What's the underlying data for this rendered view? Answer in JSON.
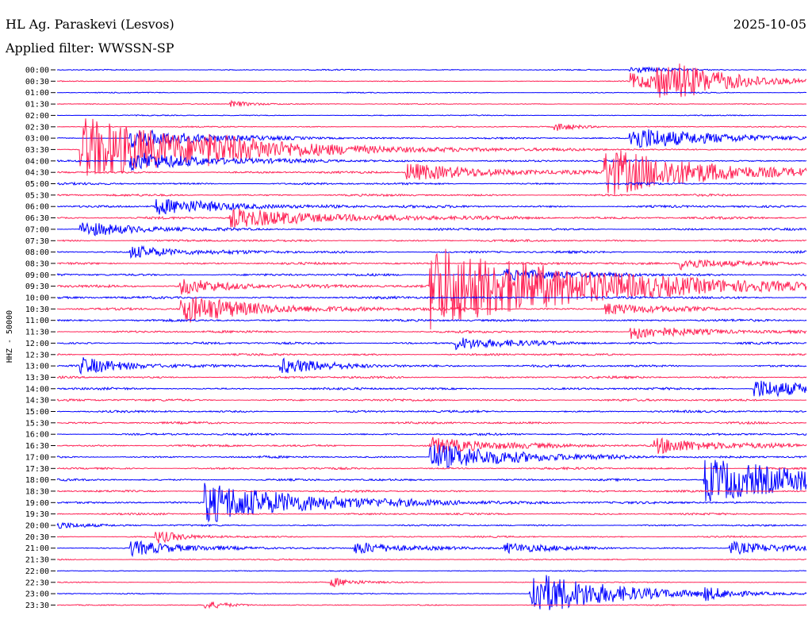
{
  "header": {
    "station": "HL Ag. Paraskevi (Lesvos)",
    "date": "2025-10-05",
    "filter": "Applied filter: WWSSN-SP"
  },
  "chart_data": {
    "type": "helicorder",
    "title": "HL Ag. Paraskevi (Lesvos)",
    "ylabel": "HHZ - 50000",
    "colors": {
      "odd_rows": "#0000ff",
      "even_rows": "#ff2255"
    },
    "grid": false,
    "legend": "none",
    "rows": [
      "00:00",
      "00:30",
      "01:00",
      "01:30",
      "02:00",
      "02:30",
      "03:00",
      "03:30",
      "04:00",
      "04:30",
      "05:00",
      "05:30",
      "06:00",
      "06:30",
      "07:00",
      "07:30",
      "08:00",
      "08:30",
      "09:00",
      "09:30",
      "10:00",
      "10:30",
      "11:00",
      "11:30",
      "12:00",
      "12:30",
      "13:00",
      "13:30",
      "14:00",
      "14:30",
      "15:00",
      "15:30",
      "16:00",
      "16:30",
      "17:00",
      "17:30",
      "18:00",
      "18:30",
      "19:00",
      "19:30",
      "20:00",
      "20:30",
      "21:00",
      "21:30",
      "22:00",
      "22:30",
      "23:00",
      "23:30"
    ],
    "noise": [
      0.8,
      0.6,
      0.7,
      0.6,
      0.7,
      0.8,
      1.0,
      1.0,
      1.3,
      1.5,
      1.5,
      1.5,
      1.6,
      1.6,
      1.5,
      1.5,
      1.6,
      1.6,
      1.7,
      1.7,
      1.7,
      1.6,
      1.6,
      1.6,
      1.6,
      1.5,
      1.6,
      1.6,
      1.6,
      1.6,
      1.5,
      1.5,
      1.5,
      1.6,
      1.5,
      1.5,
      1.5,
      1.4,
      1.3,
      1.3,
      1.2,
      1.1,
      1.0,
      0.9,
      0.7,
      0.7,
      0.7,
      0.7
    ],
    "events": [
      {
        "row": 0,
        "minute": 23,
        "amp": 4,
        "dur": 1.5
      },
      {
        "row": 1,
        "minute": 23,
        "amp": 10,
        "dur": 2.5
      },
      {
        "row": 1,
        "minute": 25,
        "amp": 7,
        "dur": 2
      },
      {
        "row": 1,
        "minute": 24,
        "amp": 16,
        "dur": 2.5
      },
      {
        "row": 3,
        "minute": 7,
        "amp": 4,
        "dur": 1
      },
      {
        "row": 5,
        "minute": 20,
        "amp": 5,
        "dur": 1
      },
      {
        "row": 6,
        "minute": 3,
        "amp": 12,
        "dur": 3
      },
      {
        "row": 6,
        "minute": 23,
        "amp": 16,
        "dur": 3
      },
      {
        "row": 7,
        "minute": 6,
        "amp": 6,
        "dur": 2
      },
      {
        "row": 7,
        "minute": 1,
        "amp": 42,
        "dur": 5
      },
      {
        "row": 8,
        "minute": 3,
        "amp": 12,
        "dur": 3
      },
      {
        "row": 9,
        "minute": 14,
        "amp": 12,
        "dur": 3
      },
      {
        "row": 9,
        "minute": 22,
        "amp": 30,
        "dur": 4
      },
      {
        "row": 12,
        "minute": 4,
        "amp": 10,
        "dur": 3
      },
      {
        "row": 13,
        "minute": 7,
        "amp": 12,
        "dur": 4
      },
      {
        "row": 14,
        "minute": 1,
        "amp": 10,
        "dur": 2
      },
      {
        "row": 16,
        "minute": 3,
        "amp": 8,
        "dur": 2
      },
      {
        "row": 17,
        "minute": 25,
        "amp": 8,
        "dur": 2
      },
      {
        "row": 18,
        "minute": 18,
        "amp": 8,
        "dur": 2.5
      },
      {
        "row": 19,
        "minute": 15,
        "amp": 55,
        "dur": 6
      },
      {
        "row": 19,
        "minute": 5,
        "amp": 10,
        "dur": 2
      },
      {
        "row": 21,
        "minute": 5,
        "amp": 18,
        "dur": 3
      },
      {
        "row": 21,
        "minute": 22,
        "amp": 8,
        "dur": 2
      },
      {
        "row": 23,
        "minute": 23,
        "amp": 10,
        "dur": 2
      },
      {
        "row": 24,
        "minute": 16,
        "amp": 8,
        "dur": 2
      },
      {
        "row": 26,
        "minute": 1,
        "amp": 10,
        "dur": 2
      },
      {
        "row": 26,
        "minute": 9,
        "amp": 9,
        "dur": 2
      },
      {
        "row": 28,
        "minute": 28,
        "amp": 12,
        "dur": 2.5
      },
      {
        "row": 33,
        "minute": 15,
        "amp": 10,
        "dur": 2.5
      },
      {
        "row": 33,
        "minute": 24,
        "amp": 10,
        "dur": 2.5
      },
      {
        "row": 34,
        "minute": 15,
        "amp": 18,
        "dur": 3
      },
      {
        "row": 36,
        "minute": 26,
        "amp": 28,
        "dur": 5
      },
      {
        "row": 38,
        "minute": 6,
        "amp": 26,
        "dur": 4
      },
      {
        "row": 40,
        "minute": 0,
        "amp": 5,
        "dur": 1
      },
      {
        "row": 41,
        "minute": 4,
        "amp": 8,
        "dur": 1
      },
      {
        "row": 42,
        "minute": 3,
        "amp": 10,
        "dur": 2
      },
      {
        "row": 42,
        "minute": 12,
        "amp": 8,
        "dur": 2
      },
      {
        "row": 42,
        "minute": 18,
        "amp": 6,
        "dur": 2
      },
      {
        "row": 42,
        "minute": 27,
        "amp": 8,
        "dur": 2
      },
      {
        "row": 45,
        "minute": 11,
        "amp": 6,
        "dur": 1
      },
      {
        "row": 46,
        "minute": 19,
        "amp": 30,
        "dur": 3
      },
      {
        "row": 46,
        "minute": 26,
        "amp": 6,
        "dur": 1
      },
      {
        "row": 47,
        "minute": 6,
        "amp": 5,
        "dur": 1
      }
    ]
  }
}
